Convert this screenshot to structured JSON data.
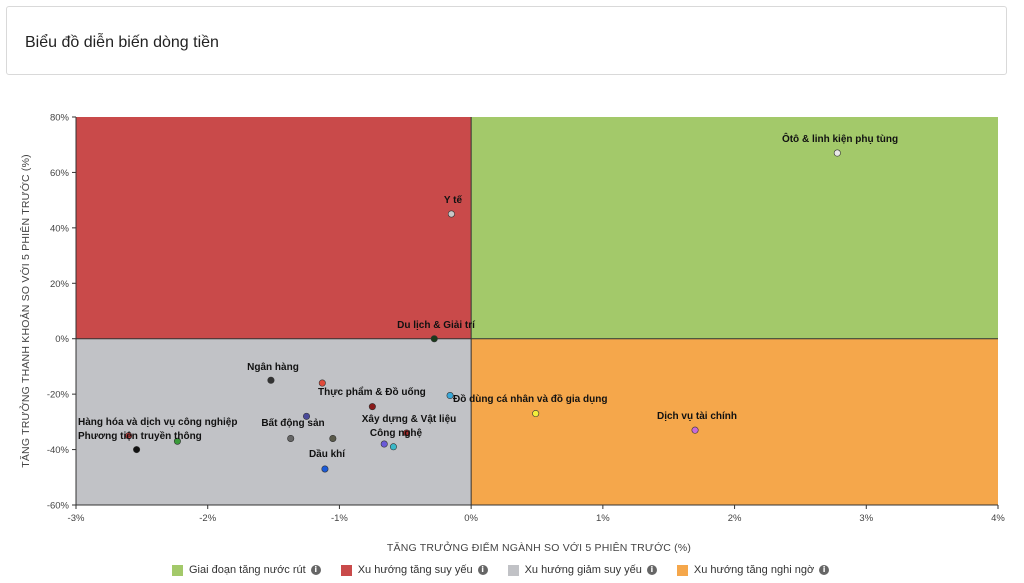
{
  "header": {
    "title": "Biểu đồ diễn biến dòng tiền"
  },
  "chart_data": {
    "type": "scatter",
    "title": "",
    "xlabel": "TĂNG TRƯỞNG ĐIỂM NGÀNH SO VỚI 5 PHIÊN TRƯỚC (%)",
    "ylabel": "TĂNG TRƯỞNG THANH KHOẢN SO VỚI 5 PHIÊN TRƯỚC (%)",
    "xlim": [
      -3,
      4
    ],
    "ylim": [
      -60,
      80
    ],
    "x_ticks": [
      -3,
      -2,
      -1,
      0,
      1,
      2,
      3,
      4
    ],
    "x_tick_labels": [
      "-3%",
      "-2%",
      "-1%",
      "0%",
      "1%",
      "2%",
      "3%",
      "4%"
    ],
    "y_ticks": [
      80,
      60,
      40,
      20,
      0,
      -20,
      -40,
      -60
    ],
    "y_tick_labels": [
      "80%",
      "60%",
      "40%",
      "20%",
      "0%",
      "-20%",
      "-40%",
      "-60%"
    ],
    "legend_position": "bottom",
    "quadrants": [
      {
        "name": "Giai đoạn tăng nước rút",
        "color": "#a3c96a",
        "region": "top-right"
      },
      {
        "name": "Xu hướng tăng suy yếu",
        "color": "#c94a4a",
        "region": "top-left"
      },
      {
        "name": "Xu hướng giảm suy yếu",
        "color": "#c1c2c6",
        "region": "bottom-left"
      },
      {
        "name": "Xu hướng tăng nghi ngờ",
        "color": "#f5a74b",
        "region": "bottom-right"
      }
    ],
    "points": [
      {
        "label": "Ôtô & linh kiện phụ tùng",
        "x": 2.78,
        "y": 67,
        "color": "#e8e8e8",
        "label_dx": 0,
        "label_dy": -10,
        "anchor": "middle"
      },
      {
        "label": "Y tế",
        "x": -0.15,
        "y": 45,
        "color": "#c8c8c8",
        "label_dx": 0,
        "label_dy": -10,
        "anchor": "middle"
      },
      {
        "label": "Du lịch & Giải trí",
        "x": -0.28,
        "y": 0,
        "color": "#1b3a1b",
        "label_dx": 0,
        "label_dy": -10,
        "anchor": "middle"
      },
      {
        "label": "Ngân hàng",
        "x": -1.52,
        "y": -15,
        "color": "#333333",
        "label_dx": 0,
        "label_dy": -10,
        "anchor": "middle"
      },
      {
        "label": "Thực phẩm & Đồ uống",
        "x": -1.13,
        "y": -16,
        "color": "#e04a3a",
        "label_dx": 0,
        "label_dy": 0,
        "anchor": "start"
      },
      {
        "label": "Đồ dùng cá nhân và đồ gia dụng",
        "x": -0.16,
        "y": -20.5,
        "color": "#3aa8d8",
        "label_dx": 0,
        "label_dy": 0,
        "anchor": "start"
      },
      {
        "label": "Hàng hóa và dịch vụ công nghiệp",
        "x": -2.23,
        "y": -37,
        "color": "#3a9a3a",
        "label_dx": 0,
        "label_dy": 0,
        "anchor": "middle"
      },
      {
        "label": "Phương tiện truyền thông",
        "x": -2.54,
        "y": -40,
        "color": "#111111",
        "label_dx": 0,
        "label_dy": 0,
        "anchor": "middle"
      },
      {
        "label": "Bất động sản",
        "x": -1.37,
        "y": -36,
        "color": "#666666",
        "label_dx": 0,
        "label_dy": 0,
        "anchor": "middle"
      },
      {
        "label": "",
        "x": -1.25,
        "y": -28,
        "color": "#4a4a9a",
        "label_dx": 0,
        "label_dy": 0,
        "anchor": "middle"
      },
      {
        "label": "",
        "x": -1.05,
        "y": -36,
        "color": "#5a5a4a",
        "label_dx": 0,
        "label_dy": 0,
        "anchor": "middle"
      },
      {
        "label": "Dầu khí",
        "x": -1.11,
        "y": -47,
        "color": "#1a5ad8",
        "label_dx": 0,
        "label_dy": 0,
        "anchor": "middle"
      },
      {
        "label": "",
        "x": -0.75,
        "y": -24.5,
        "color": "#8a1a1a",
        "label_dx": 0,
        "label_dy": 0,
        "anchor": "middle"
      },
      {
        "label": "Xây dựng & Vật liệu",
        "x": -0.66,
        "y": -38,
        "color": "#6a5ad8",
        "label_dx": 0,
        "label_dy": 0,
        "anchor": "middle"
      },
      {
        "label": "Công nghệ",
        "x": -0.59,
        "y": -39,
        "color": "#3ab8c8",
        "label_dx": 0,
        "label_dy": 0,
        "anchor": "middle"
      },
      {
        "label": "",
        "x": -0.49,
        "y": -34,
        "color": "#a82a2a",
        "label_dx": 0,
        "label_dy": 0,
        "anchor": "middle"
      },
      {
        "label": "",
        "x": -2.6,
        "y": -35,
        "color": "#d84a4a",
        "label_dx": 0,
        "label_dy": 0,
        "anchor": "middle"
      },
      {
        "label": "Dịch vụ tài chính",
        "x": 1.7,
        "y": -33,
        "color": "#c86ad8",
        "label_dx": 0,
        "label_dy": 0,
        "anchor": "middle"
      },
      {
        "label": "",
        "x": 0.49,
        "y": -27,
        "color": "#f2ee3a",
        "label_dx": 0,
        "label_dy": 0,
        "anchor": "middle"
      }
    ]
  }
}
